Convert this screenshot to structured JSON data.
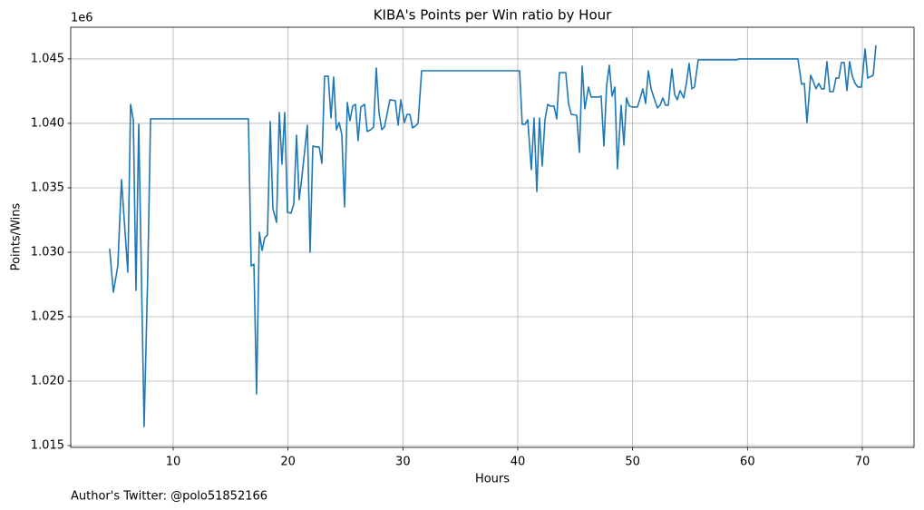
{
  "chart_data": {
    "type": "line",
    "title": "KIBA's Points per Win ratio by Hour",
    "xlabel": "Hours",
    "ylabel": "Points/Wins",
    "y_offset_text": "1e6",
    "footnote": "Author's Twitter: @polo51852166",
    "color": "#1f77b4",
    "grid": true,
    "x": [
      4.47,
      4.79,
      5.18,
      5.5,
      6.05,
      6.29,
      6.53,
      6.76,
      7.0,
      7.47,
      7.79,
      8.03,
      16.55,
      16.79,
      17.03,
      17.26,
      17.5,
      17.74,
      17.97,
      18.21,
      18.45,
      18.68,
      19.0,
      19.24,
      19.47,
      19.71,
      19.95,
      20.26,
      20.5,
      20.74,
      20.97,
      21.21,
      21.45,
      21.68,
      21.92,
      22.16,
      22.47,
      22.71,
      22.95,
      23.18,
      23.5,
      23.74,
      23.97,
      24.21,
      24.45,
      24.68,
      24.92,
      25.16,
      25.39,
      25.63,
      25.87,
      26.1,
      26.34,
      26.66,
      26.89,
      27.21,
      27.45,
      27.68,
      27.92,
      28.16,
      28.39,
      28.63,
      28.87,
      29.34,
      29.58,
      29.82,
      30.13,
      30.37,
      30.61,
      30.84,
      31.08,
      31.32,
      31.63,
      40.16,
      40.39,
      40.63,
      40.87,
      41.18,
      41.42,
      41.66,
      41.89,
      42.13,
      42.37,
      42.61,
      42.84,
      43.16,
      43.39,
      43.63,
      44.18,
      44.42,
      44.66,
      45.13,
      45.37,
      45.61,
      45.84,
      46.16,
      46.39,
      47.03,
      47.26,
      47.5,
      47.74,
      47.97,
      48.21,
      48.45,
      48.68,
      49.0,
      49.24,
      49.47,
      49.71,
      49.95,
      50.42,
      50.66,
      50.89,
      51.13,
      51.37,
      51.61,
      51.84,
      52.16,
      52.39,
      52.63,
      52.87,
      53.11,
      53.42,
      53.66,
      53.89,
      54.13,
      54.45,
      54.68,
      54.92,
      55.16,
      55.39,
      55.71,
      59.03,
      59.26,
      64.39,
      64.71,
      64.95,
      65.18,
      65.5,
      65.74,
      65.97,
      66.21,
      66.45,
      66.68,
      66.92,
      67.16,
      67.47,
      67.71,
      67.95,
      68.18,
      68.42,
      68.66,
      68.89,
      69.13,
      69.37,
      69.61,
      69.92,
      70.24,
      70.47,
      70.95,
      71.18
    ],
    "values": [
      1030280,
      1026900,
      1028940,
      1035630,
      1028450,
      1041480,
      1040280,
      1027040,
      1039930,
      1016480,
      1028450,
      1040350,
      1040350,
      1028940,
      1029080,
      1019010,
      1031550,
      1030140,
      1031130,
      1031340,
      1040140,
      1033380,
      1032320,
      1040850,
      1036830,
      1040850,
      1033100,
      1033030,
      1033730,
      1039080,
      1034080,
      1035850,
      1037890,
      1039860,
      1030000,
      1038240,
      1038170,
      1038170,
      1036900,
      1043660,
      1043660,
      1040420,
      1043590,
      1039510,
      1040070,
      1039150,
      1033520,
      1041620,
      1040210,
      1041340,
      1041480,
      1038660,
      1041270,
      1041480,
      1039370,
      1039510,
      1039720,
      1044300,
      1040850,
      1039510,
      1039720,
      1040770,
      1041830,
      1041760,
      1039860,
      1041830,
      1040070,
      1040700,
      1040700,
      1039650,
      1039790,
      1040000,
      1044080,
      1044080,
      1039930,
      1039930,
      1040280,
      1036410,
      1040420,
      1034720,
      1040420,
      1036690,
      1040280,
      1041480,
      1041340,
      1041340,
      1040350,
      1043940,
      1043940,
      1041550,
      1040700,
      1040630,
      1037750,
      1044440,
      1041130,
      1042820,
      1042040,
      1042040,
      1042110,
      1038240,
      1042960,
      1044510,
      1042110,
      1042820,
      1036480,
      1041410,
      1038310,
      1041970,
      1041340,
      1041270,
      1041270,
      1041970,
      1042680,
      1041550,
      1044080,
      1042680,
      1042040,
      1041200,
      1041410,
      1041970,
      1041410,
      1041410,
      1044230,
      1042250,
      1041830,
      1042540,
      1041970,
      1043100,
      1044650,
      1042680,
      1042820,
      1044930,
      1044930,
      1045000,
      1045000,
      1043030,
      1043100,
      1040070,
      1043730,
      1043240,
      1042680,
      1043100,
      1042680,
      1042680,
      1044790,
      1042460,
      1042460,
      1043520,
      1043520,
      1044720,
      1044720,
      1042540,
      1044790,
      1043660,
      1043100,
      1042820,
      1042820,
      1045770,
      1043520,
      1043730,
      1046060
    ],
    "xlim": [
      1.08,
      74.5
    ],
    "xticks": [
      10,
      20,
      30,
      40,
      50,
      60,
      70
    ],
    "ylim": [
      1014860,
      1047460
    ],
    "yticks": [
      {
        "value": 1015000,
        "label": "1.015"
      },
      {
        "value": 1020000,
        "label": "1.020"
      },
      {
        "value": 1025000,
        "label": "1.025"
      },
      {
        "value": 1030000,
        "label": "1.030"
      },
      {
        "value": 1035000,
        "label": "1.035"
      },
      {
        "value": 1040000,
        "label": "1.040"
      },
      {
        "value": 1045000,
        "label": "1.045"
      }
    ]
  }
}
